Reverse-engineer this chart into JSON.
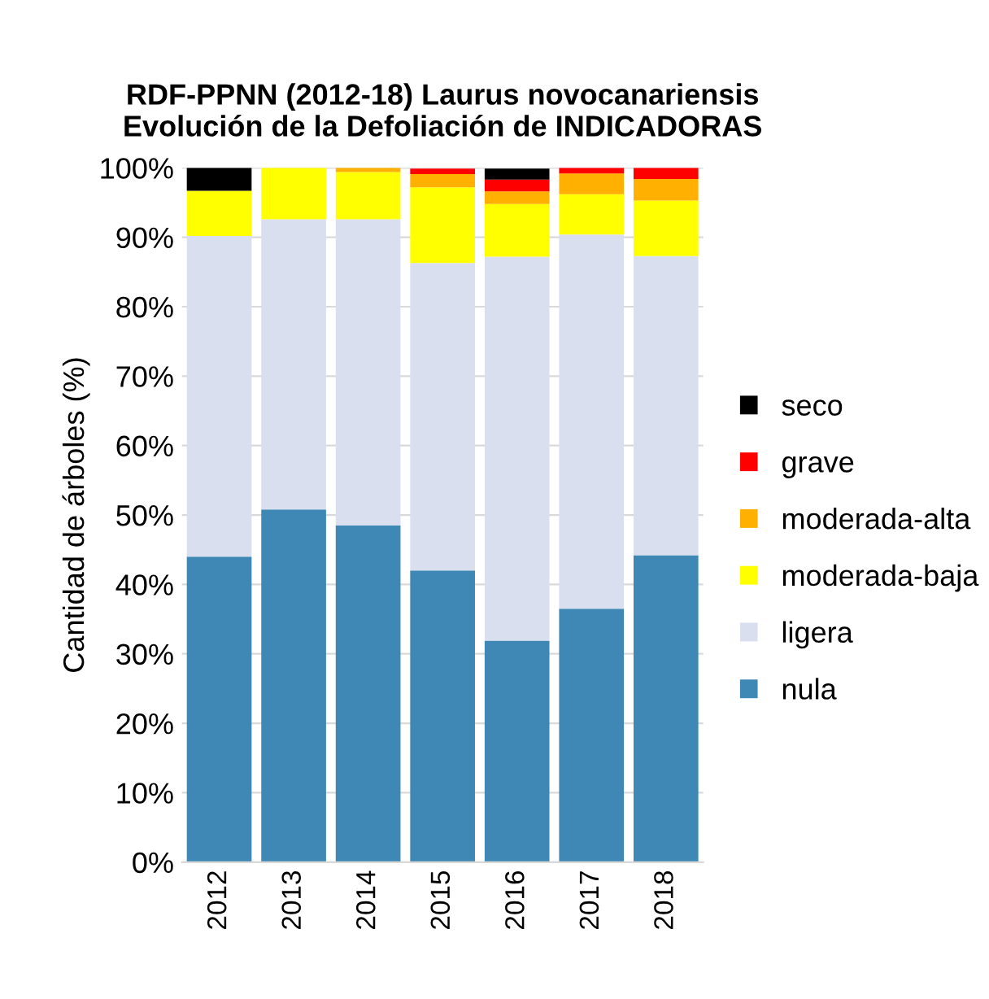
{
  "chart_data": {
    "type": "bar",
    "stacked": true,
    "title": "RDF-PPNN (2012-18) Laurus novocanariensis\nEvolución de la Defoliación de INDICADORAS",
    "ylabel": "Cantidad de árboles (%)",
    "categories": [
      "2012",
      "2013",
      "2014",
      "2015",
      "2016",
      "2017",
      "2018"
    ],
    "series": [
      {
        "name": "nula",
        "color": "#3f87b4",
        "values": [
          44.0,
          50.8,
          48.5,
          42.0,
          31.9,
          36.5,
          44.2
        ]
      },
      {
        "name": "ligera",
        "color": "#d9dfee",
        "values": [
          46.2,
          41.8,
          44.1,
          44.3,
          55.3,
          53.9,
          43.1
        ]
      },
      {
        "name": "moderada-baja",
        "color": "#ffff00",
        "values": [
          6.5,
          7.4,
          6.8,
          10.9,
          7.6,
          5.8,
          8.0
        ]
      },
      {
        "name": "moderada-alta",
        "color": "#ffb000",
        "values": [
          0,
          0,
          0.6,
          1.9,
          1.8,
          3.0,
          3.1
        ]
      },
      {
        "name": "grave",
        "color": "#ff0000",
        "values": [
          0,
          0,
          0,
          0.8,
          1.7,
          0.8,
          1.6
        ]
      },
      {
        "name": "seco",
        "color": "#000000",
        "values": [
          3.3,
          0,
          0,
          0,
          1.6,
          0,
          0
        ]
      }
    ],
    "ylim": [
      0,
      100
    ],
    "yticks": [
      {
        "value": 0,
        "label": "0%"
      },
      {
        "value": 10,
        "label": "10%"
      },
      {
        "value": 20,
        "label": "20%"
      },
      {
        "value": 30,
        "label": "30%"
      },
      {
        "value": 40,
        "label": "40%"
      },
      {
        "value": 50,
        "label": "50%"
      },
      {
        "value": 60,
        "label": "60%"
      },
      {
        "value": 70,
        "label": "70%"
      },
      {
        "value": 80,
        "label": "80%"
      },
      {
        "value": 90,
        "label": "90%"
      },
      {
        "value": 100,
        "label": "100%"
      }
    ],
    "grid": "y",
    "legend": "right"
  }
}
